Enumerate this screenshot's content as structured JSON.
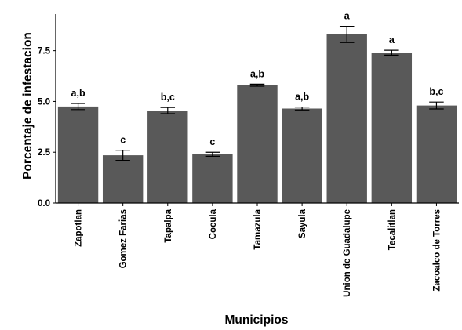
{
  "chart_data": {
    "type": "bar",
    "xlabel": "Municipios",
    "ylabel": "Porcentaje de infestacion",
    "ylim": [
      0,
      9.3
    ],
    "yticks": [
      "0.0",
      "2.5",
      "5.0",
      "7.5"
    ],
    "yticks_values": [
      0,
      2.5,
      5.0,
      7.5
    ],
    "grid": false,
    "bar_color": "#595959",
    "categories": [
      "Zapotlan",
      "Gomez Farias",
      "Tapalpa",
      "Cocula",
      "Tamazula",
      "Sayula",
      "Union de Guadalupe",
      "Tecalitlan",
      "Zacoalco de Torres"
    ],
    "values": [
      4.75,
      2.35,
      4.55,
      2.4,
      5.8,
      4.65,
      8.3,
      7.4,
      4.8
    ],
    "error": [
      0.15,
      0.25,
      0.15,
      0.1,
      0.05,
      0.07,
      0.4,
      0.12,
      0.17
    ],
    "labels": [
      "a,b",
      "c",
      "b,c",
      "c",
      "a,b",
      "a,b",
      "a",
      "a",
      "b,c"
    ]
  }
}
